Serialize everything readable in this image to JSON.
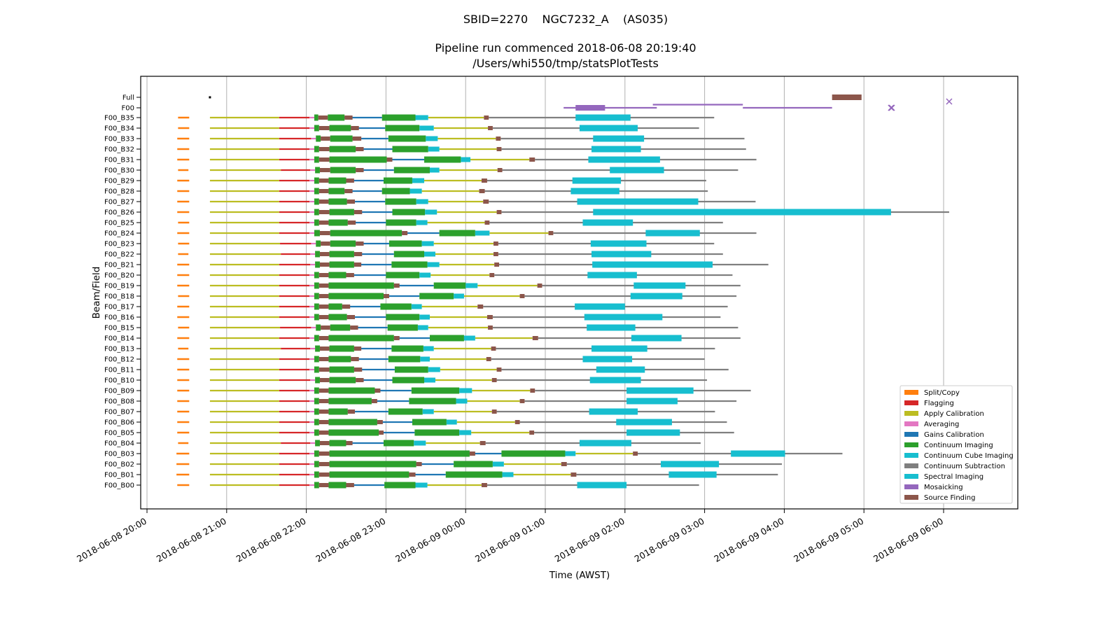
{
  "chart_data": {
    "type": "gantt",
    "title": "SBID=2270    NGC7232_A    (AS035)",
    "subtitle_line1": "Pipeline run commenced 2018-06-08 20:19:40",
    "subtitle_line2": "/Users/whi550/tmp/statsPlotTests",
    "xlabel": "Time (AWST)",
    "ylabel": "Beam/Field",
    "x_origin": "2018-06-08 20:00",
    "x_units": "hours since 2018-06-08 20:00",
    "xlim": [
      -0.1,
      10.6
    ],
    "xticks": [
      {
        "h": 0,
        "label": "2018-06-08 20:00"
      },
      {
        "h": 1,
        "label": "2018-06-08 21:00"
      },
      {
        "h": 2,
        "label": "2018-06-08 22:00"
      },
      {
        "h": 3,
        "label": "2018-06-08 23:00"
      },
      {
        "h": 4,
        "label": "2018-06-09 00:00"
      },
      {
        "h": 5,
        "label": "2018-06-09 01:00"
      },
      {
        "h": 6,
        "label": "2018-06-09 02:00"
      },
      {
        "h": 7,
        "label": "2018-06-09 03:00"
      },
      {
        "h": 8,
        "label": "2018-06-09 04:00"
      },
      {
        "h": 9,
        "label": "2018-06-09 05:00"
      },
      {
        "h": 10,
        "label": "2018-06-09 06:00"
      }
    ],
    "grid": "vertical",
    "legend_position": "lower-right",
    "categories": [
      {
        "key": "split",
        "name": "Split/Copy",
        "color": "#ff7f0e"
      },
      {
        "key": "flag",
        "name": "Flagging",
        "color": "#d62728"
      },
      {
        "key": "applycal",
        "name": "Apply Calibration",
        "color": "#bcbd22"
      },
      {
        "key": "avg",
        "name": "Averaging",
        "color": "#e377c2"
      },
      {
        "key": "gains",
        "name": "Gains Calibration",
        "color": "#1f77b4"
      },
      {
        "key": "contim",
        "name": "Continuum Imaging",
        "color": "#2ca02c"
      },
      {
        "key": "contcube",
        "name": "Continuum Cube Imaging",
        "color": "#17becf"
      },
      {
        "key": "contsub",
        "name": "Continuum Subtraction",
        "color": "#7f7f7f"
      },
      {
        "key": "spectral",
        "name": "Spectral Imaging",
        "color": "#17becf"
      },
      {
        "key": "mosaic",
        "name": "Mosaicking",
        "color": "#9467bd"
      },
      {
        "key": "selavy",
        "name": "Source Finding",
        "color": "#8c564b"
      }
    ],
    "rows": [
      {
        "label": "Full",
        "segments": [
          {
            "c": "selavy",
            "s": 8.6,
            "e": 8.97,
            "thick": true
          }
        ],
        "points": [
          {
            "c": "black",
            "h": 0.79
          }
        ]
      },
      {
        "label": "F00",
        "segments": [
          {
            "c": "mosaic",
            "s": 5.23,
            "e": 6.4
          },
          {
            "c": "mosaic",
            "s": 5.38,
            "e": 5.75,
            "thick": true
          },
          {
            "c": "mosaic",
            "s": 6.35,
            "e": 7.48,
            "y_off": -0.3
          },
          {
            "c": "mosaic",
            "s": 7.48,
            "e": 8.6
          }
        ],
        "markers": [
          {
            "c": "mosaic",
            "h": 9.34
          },
          {
            "c": "mosaic",
            "h": 9.35
          },
          {
            "c": "mosaic",
            "h": 10.07,
            "y_off": -0.6
          }
        ]
      },
      {
        "label": "F00_B35",
        "b": [
          0.39,
          0.53,
          0.79,
          1.66,
          2.1,
          2.15,
          2.27,
          2.48,
          2.58,
          2.95,
          3.37,
          3.53,
          4.23,
          4.29,
          5.38,
          6.07,
          7.12
        ]
      },
      {
        "label": "F00_B34",
        "b": [
          0.39,
          0.53,
          0.79,
          1.66,
          2.1,
          2.16,
          2.29,
          2.56,
          2.66,
          2.99,
          3.42,
          3.6,
          4.28,
          4.34,
          5.43,
          6.16,
          6.93
        ]
      },
      {
        "label": "F00_B33",
        "b": [
          0.38,
          0.53,
          0.79,
          1.66,
          2.12,
          2.18,
          2.3,
          2.58,
          2.69,
          3.03,
          3.5,
          3.65,
          4.38,
          4.44,
          5.6,
          6.24,
          7.5
        ]
      },
      {
        "label": "F00_B32",
        "b": [
          0.38,
          0.53,
          0.79,
          1.66,
          2.1,
          2.16,
          2.29,
          2.62,
          2.72,
          3.08,
          3.53,
          3.67,
          4.39,
          4.45,
          5.58,
          6.2,
          7.52
        ]
      },
      {
        "label": "F00_B31",
        "b": [
          0.38,
          0.53,
          0.79,
          1.66,
          2.1,
          2.16,
          2.29,
          3.01,
          3.08,
          3.48,
          3.94,
          4.06,
          4.8,
          4.87,
          5.54,
          6.44,
          7.65
        ]
      },
      {
        "label": "F00_B30",
        "b": [
          0.39,
          0.52,
          0.79,
          1.68,
          2.11,
          2.17,
          2.3,
          2.62,
          2.72,
          3.1,
          3.55,
          3.67,
          4.4,
          4.46,
          5.81,
          6.49,
          7.42
        ]
      },
      {
        "label": "F00_B29",
        "b": [
          0.38,
          0.53,
          0.79,
          1.66,
          2.1,
          2.16,
          2.28,
          2.5,
          2.6,
          2.97,
          3.33,
          3.48,
          4.2,
          4.27,
          5.34,
          5.95,
          7.02
        ]
      },
      {
        "label": "F00_B28",
        "b": [
          0.38,
          0.53,
          0.79,
          1.66,
          2.1,
          2.16,
          2.28,
          2.48,
          2.58,
          2.95,
          3.3,
          3.45,
          4.17,
          4.24,
          5.32,
          5.93,
          7.04
        ]
      },
      {
        "label": "F00_B27",
        "b": [
          0.38,
          0.53,
          0.79,
          1.66,
          2.1,
          2.16,
          2.28,
          2.51,
          2.61,
          2.99,
          3.38,
          3.53,
          4.22,
          4.29,
          5.4,
          6.92,
          7.64
        ]
      },
      {
        "label": "F00_B26",
        "b": [
          0.38,
          0.53,
          0.79,
          1.66,
          2.1,
          2.16,
          2.29,
          2.6,
          2.7,
          3.08,
          3.49,
          3.64,
          4.39,
          4.45,
          5.6,
          9.34,
          10.07
        ]
      },
      {
        "label": "F00_B25",
        "b": [
          0.39,
          0.53,
          0.79,
          1.66,
          2.1,
          2.16,
          2.28,
          2.52,
          2.62,
          3.0,
          3.38,
          3.52,
          4.24,
          4.3,
          5.47,
          6.1,
          7.23
        ]
      },
      {
        "label": "F00_B24",
        "b": [
          0.38,
          0.53,
          0.79,
          1.66,
          2.1,
          2.17,
          2.3,
          3.2,
          3.27,
          3.67,
          4.12,
          4.3,
          5.04,
          5.1,
          6.26,
          6.94,
          7.65
        ]
      },
      {
        "label": "F00_B23",
        "b": [
          0.39,
          0.53,
          0.79,
          1.67,
          2.12,
          2.18,
          2.3,
          2.62,
          2.72,
          3.04,
          3.45,
          3.6,
          4.35,
          4.41,
          5.57,
          6.27,
          7.12
        ]
      },
      {
        "label": "F00_B22",
        "b": [
          0.39,
          0.52,
          0.79,
          1.68,
          2.11,
          2.17,
          2.29,
          2.6,
          2.7,
          3.1,
          3.48,
          3.62,
          4.35,
          4.41,
          5.58,
          6.33,
          7.23
        ]
      },
      {
        "label": "F00_B21",
        "b": [
          0.38,
          0.53,
          0.79,
          1.66,
          2.11,
          2.17,
          2.29,
          2.6,
          2.69,
          3.07,
          3.52,
          3.67,
          4.36,
          4.42,
          5.59,
          7.1,
          7.8
        ]
      },
      {
        "label": "F00_B20",
        "b": [
          0.38,
          0.53,
          0.79,
          1.66,
          2.1,
          2.16,
          2.28,
          2.5,
          2.6,
          3.0,
          3.42,
          3.56,
          4.3,
          4.36,
          5.53,
          6.15,
          7.35
        ]
      },
      {
        "label": "F00_B19",
        "b": [
          0.38,
          0.53,
          0.79,
          1.66,
          2.1,
          2.16,
          2.28,
          3.1,
          3.17,
          3.6,
          4.0,
          4.15,
          4.9,
          4.96,
          6.11,
          6.76,
          7.45
        ]
      },
      {
        "label": "F00_B18",
        "b": [
          0.39,
          0.53,
          0.79,
          1.66,
          2.1,
          2.16,
          2.28,
          2.97,
          3.04,
          3.42,
          3.85,
          3.98,
          4.68,
          4.74,
          6.07,
          6.72,
          7.4
        ]
      },
      {
        "label": "F00_B17",
        "b": [
          0.38,
          0.53,
          0.79,
          1.66,
          2.1,
          2.16,
          2.28,
          2.45,
          2.55,
          2.93,
          3.32,
          3.45,
          4.15,
          4.22,
          5.37,
          6.0,
          7.29
        ]
      },
      {
        "label": "F00_B16",
        "b": [
          0.38,
          0.53,
          0.79,
          1.66,
          2.1,
          2.16,
          2.28,
          2.51,
          2.61,
          3.0,
          3.42,
          3.55,
          4.27,
          4.34,
          5.49,
          6.47,
          7.2
        ]
      },
      {
        "label": "F00_B15",
        "b": [
          0.39,
          0.53,
          0.79,
          1.67,
          2.12,
          2.18,
          2.3,
          2.55,
          2.65,
          3.02,
          3.4,
          3.53,
          4.28,
          4.34,
          5.52,
          6.13,
          7.42
        ]
      },
      {
        "label": "F00_B14",
        "b": [
          0.38,
          0.53,
          0.79,
          1.66,
          2.1,
          2.16,
          2.28,
          3.1,
          3.17,
          3.55,
          3.98,
          4.12,
          4.84,
          4.91,
          6.08,
          6.71,
          7.45
        ]
      },
      {
        "label": "F00_B13",
        "b": [
          0.39,
          0.52,
          0.79,
          1.68,
          2.11,
          2.17,
          2.29,
          2.6,
          2.69,
          3.07,
          3.47,
          3.6,
          4.32,
          4.38,
          5.58,
          6.28,
          7.13
        ]
      },
      {
        "label": "F00_B12",
        "b": [
          0.38,
          0.53,
          0.79,
          1.66,
          2.1,
          2.16,
          2.28,
          2.56,
          2.66,
          3.03,
          3.43,
          3.55,
          4.26,
          4.32,
          5.47,
          6.09,
          7.0
        ]
      },
      {
        "label": "F00_B11",
        "b": [
          0.38,
          0.53,
          0.79,
          1.66,
          2.1,
          2.16,
          2.29,
          2.6,
          2.7,
          3.11,
          3.53,
          3.68,
          4.39,
          4.45,
          5.64,
          6.25,
          7.3
        ]
      },
      {
        "label": "F00_B10",
        "b": [
          0.38,
          0.53,
          0.79,
          1.66,
          2.11,
          2.17,
          2.29,
          2.62,
          2.72,
          3.08,
          3.48,
          3.62,
          4.33,
          4.39,
          5.56,
          6.2,
          7.03
        ]
      },
      {
        "label": "F00_B09",
        "b": [
          0.38,
          0.53,
          0.79,
          1.66,
          2.1,
          2.16,
          2.28,
          2.86,
          2.93,
          3.32,
          3.92,
          4.08,
          4.81,
          4.87,
          6.02,
          6.86,
          7.58
        ]
      },
      {
        "label": "F00_B08",
        "b": [
          0.38,
          0.53,
          0.79,
          1.66,
          2.1,
          2.16,
          2.28,
          2.82,
          2.89,
          3.29,
          3.88,
          4.02,
          4.68,
          4.74,
          6.02,
          6.66,
          7.4
        ]
      },
      {
        "label": "F00_B07",
        "b": [
          0.38,
          0.53,
          0.79,
          1.66,
          2.1,
          2.16,
          2.28,
          2.52,
          2.61,
          3.03,
          3.46,
          3.6,
          4.33,
          4.39,
          5.55,
          6.16,
          7.13
        ]
      },
      {
        "label": "F00_B06",
        "b": [
          0.38,
          0.53,
          0.79,
          1.66,
          2.1,
          2.16,
          2.28,
          2.89,
          2.96,
          3.33,
          3.76,
          3.89,
          4.62,
          4.68,
          5.89,
          6.59,
          7.28
        ]
      },
      {
        "label": "F00_B05",
        "b": [
          0.38,
          0.53,
          0.79,
          1.66,
          2.1,
          2.16,
          2.28,
          2.91,
          2.97,
          3.36,
          3.92,
          4.07,
          4.8,
          4.86,
          6.02,
          6.69,
          7.37
        ]
      },
      {
        "label": "F00_B04",
        "b": [
          0.39,
          0.52,
          0.79,
          1.68,
          2.11,
          2.17,
          2.29,
          2.5,
          2.58,
          2.97,
          3.35,
          3.5,
          4.18,
          4.25,
          5.43,
          6.08,
          6.95
        ]
      },
      {
        "label": "F00_B03",
        "b": [
          0.37,
          0.53,
          0.79,
          1.66,
          2.1,
          2.16,
          2.29,
          4.05,
          4.12,
          4.45,
          5.25,
          5.38,
          6.1,
          6.16,
          7.33,
          8.01,
          8.73
        ]
      },
      {
        "label": "F00_B02",
        "b": [
          0.37,
          0.53,
          0.79,
          1.66,
          2.1,
          2.16,
          2.29,
          3.38,
          3.45,
          3.85,
          4.34,
          4.48,
          5.2,
          5.27,
          6.45,
          7.18,
          7.97
        ]
      },
      {
        "label": "F00_B01",
        "b": [
          0.37,
          0.53,
          0.79,
          1.66,
          2.1,
          2.16,
          2.29,
          3.29,
          3.37,
          3.75,
          4.46,
          4.6,
          5.32,
          5.39,
          6.55,
          7.15,
          7.92
        ]
      },
      {
        "label": "F00_B00",
        "b": [
          0.38,
          0.53,
          0.79,
          1.66,
          2.1,
          2.16,
          2.28,
          2.5,
          2.6,
          2.98,
          3.37,
          3.52,
          4.2,
          4.27,
          5.4,
          6.02,
          6.93
        ]
      }
    ],
    "beam_field_order": "split_s,split_e,applycal_s,flag_s,avg_e(=contim1_s),contim1_e,selavy1_e(=contim2_s),contim2_e,selavy2_e(=gains ends at contim3_s),contim3_s,contim3_e,contcube_e,selavy3_s,selavy3_e,contsub_gap_s,spectral_s,spectral_e..contsub_e"
  }
}
